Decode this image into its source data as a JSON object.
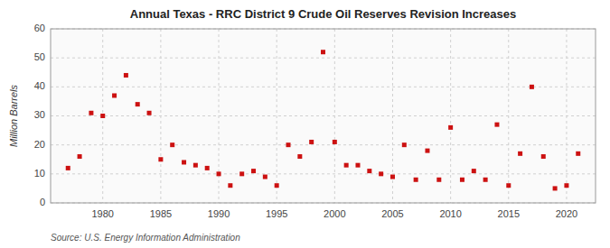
{
  "chart_data": {
    "type": "scatter",
    "title": "Annual Texas - RRC District 9 Crude Oil Reserves Revision Increases",
    "ylabel": "Million Barrels",
    "annotation": "Source: U.S. Energy Information Administration",
    "x": [
      1977,
      1978,
      1979,
      1980,
      1981,
      1982,
      1983,
      1984,
      1985,
      1986,
      1987,
      1988,
      1989,
      1990,
      1991,
      1992,
      1993,
      1994,
      1995,
      1996,
      1997,
      1998,
      1999,
      2000,
      2001,
      2002,
      2003,
      2004,
      2005,
      2006,
      2007,
      2008,
      2009,
      2010,
      2011,
      2012,
      2013,
      2014,
      2015,
      2016,
      2017,
      2018,
      2019,
      2020,
      2021
    ],
    "values": [
      12,
      16,
      31,
      30,
      37,
      44,
      34,
      31,
      15,
      20,
      14,
      13,
      12,
      10,
      6,
      10,
      11,
      9,
      6,
      20,
      16,
      21,
      52,
      21,
      13,
      13,
      11,
      10,
      9,
      20,
      8,
      18,
      8,
      26,
      8,
      11,
      8,
      27,
      6,
      17,
      40,
      16,
      5,
      6,
      17
    ],
    "color": "#cc1111",
    "marker": "square",
    "xlim": [
      1975.5,
      2022.5
    ],
    "xticks": [
      1980,
      1985,
      1990,
      1995,
      2000,
      2005,
      2010,
      2015,
      2020
    ],
    "ylim": [
      0,
      60
    ],
    "yticks": [
      0,
      10,
      20,
      30,
      40,
      50,
      60
    ],
    "grid": true
  }
}
